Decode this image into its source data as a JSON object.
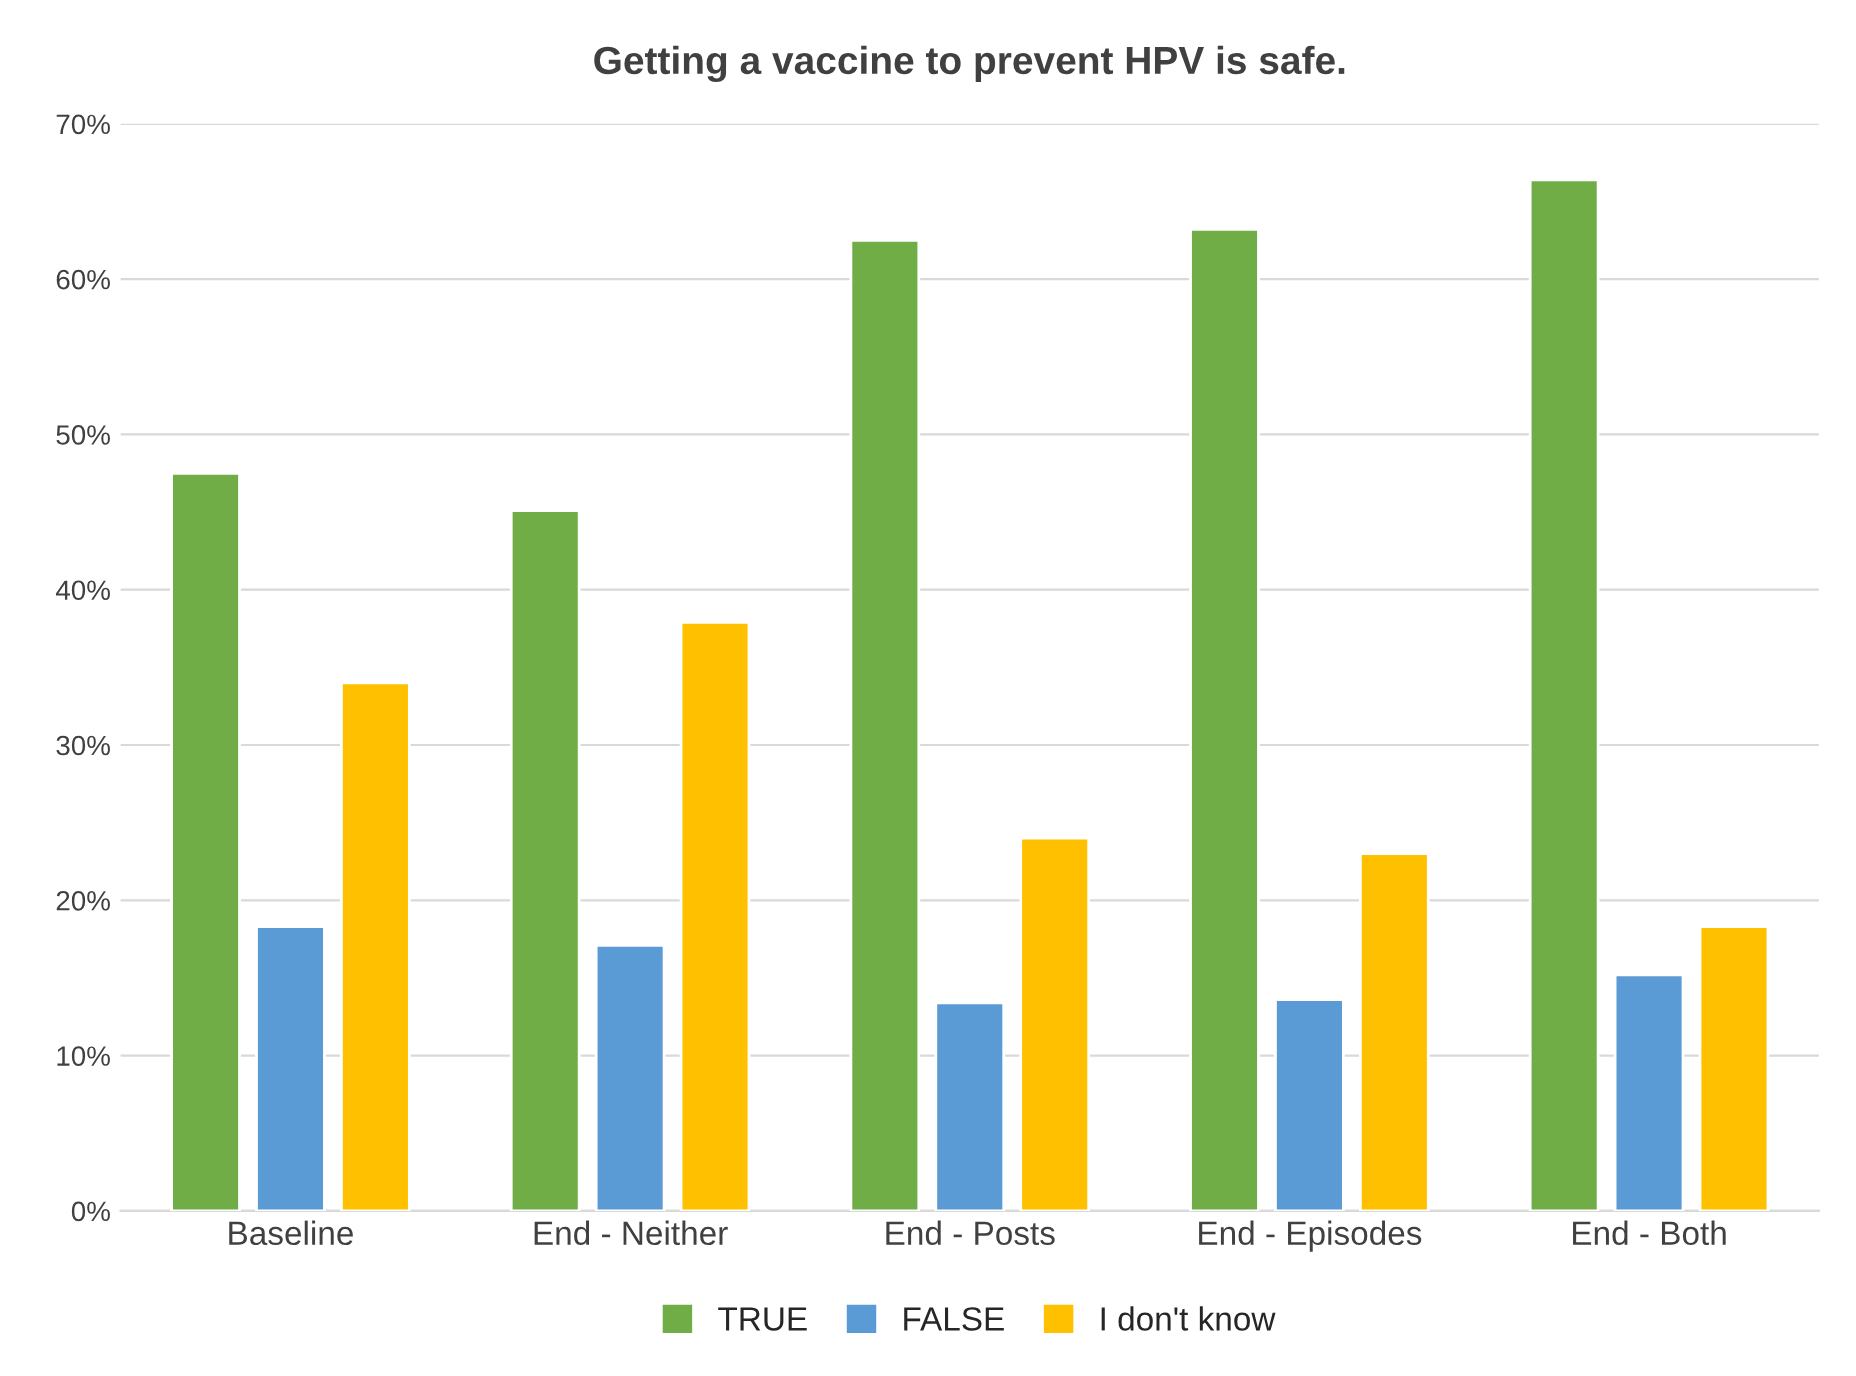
{
  "chart_data": {
    "type": "bar",
    "title": "Getting a vaccine to prevent HPV is safe.",
    "categories": [
      "Baseline",
      "End - Neither",
      "End - Posts",
      "End - Episodes",
      "End - Both"
    ],
    "series": [
      {
        "name": "TRUE",
        "color": "#70ad47",
        "values": [
          47.5,
          45.1,
          62.5,
          63.2,
          66.4
        ]
      },
      {
        "name": "FALSE",
        "color": "#5b9bd5",
        "values": [
          18.3,
          17.1,
          13.4,
          13.6,
          15.2
        ]
      },
      {
        "name": "I don't know",
        "color": "#ffc000",
        "values": [
          34.0,
          37.9,
          24.0,
          23.0,
          18.3
        ]
      }
    ],
    "ylim": [
      0,
      70
    ],
    "yticks": [
      {
        "value": 0,
        "label": "0%"
      },
      {
        "value": 10,
        "label": "10%"
      },
      {
        "value": 20,
        "label": "20%"
      },
      {
        "value": 30,
        "label": "30%"
      },
      {
        "value": 40,
        "label": "40%"
      },
      {
        "value": 50,
        "label": "50%"
      },
      {
        "value": 60,
        "label": "60%"
      },
      {
        "value": 70,
        "label": "70%"
      }
    ],
    "grid": "y",
    "legend": "bottom"
  }
}
